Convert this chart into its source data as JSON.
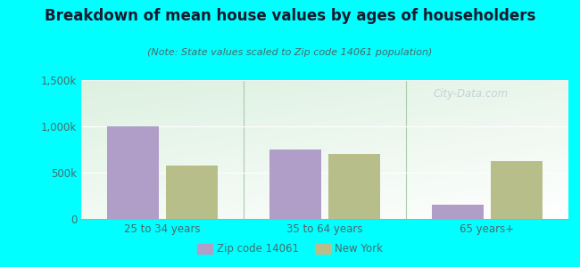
{
  "title": "Breakdown of mean house values by ages of householders",
  "subtitle": "(Note: State values scaled to Zip code 14061 population)",
  "categories": [
    "25 to 34 years",
    "35 to 64 years",
    "65 years+"
  ],
  "zip_values": [
    1000000,
    750000,
    150000
  ],
  "ny_values": [
    575000,
    700000,
    625000
  ],
  "zip_color": "#b09dc8",
  "ny_color": "#b8be8a",
  "ylim": [
    0,
    1500000
  ],
  "yticks": [
    0,
    500000,
    1000000,
    1500000
  ],
  "ytick_labels": [
    "0",
    "500k",
    "1,000k",
    "1,500k"
  ],
  "background_color": "#00ffff",
  "bar_width": 0.32,
  "legend_zip": "Zip code 14061",
  "legend_ny": "New York",
  "watermark": "City-Data.com",
  "title_color": "#1a1a2e",
  "subtitle_color": "#4a6a6a",
  "tick_color": "#4a6a6a",
  "separator_color": "#aaccaa"
}
